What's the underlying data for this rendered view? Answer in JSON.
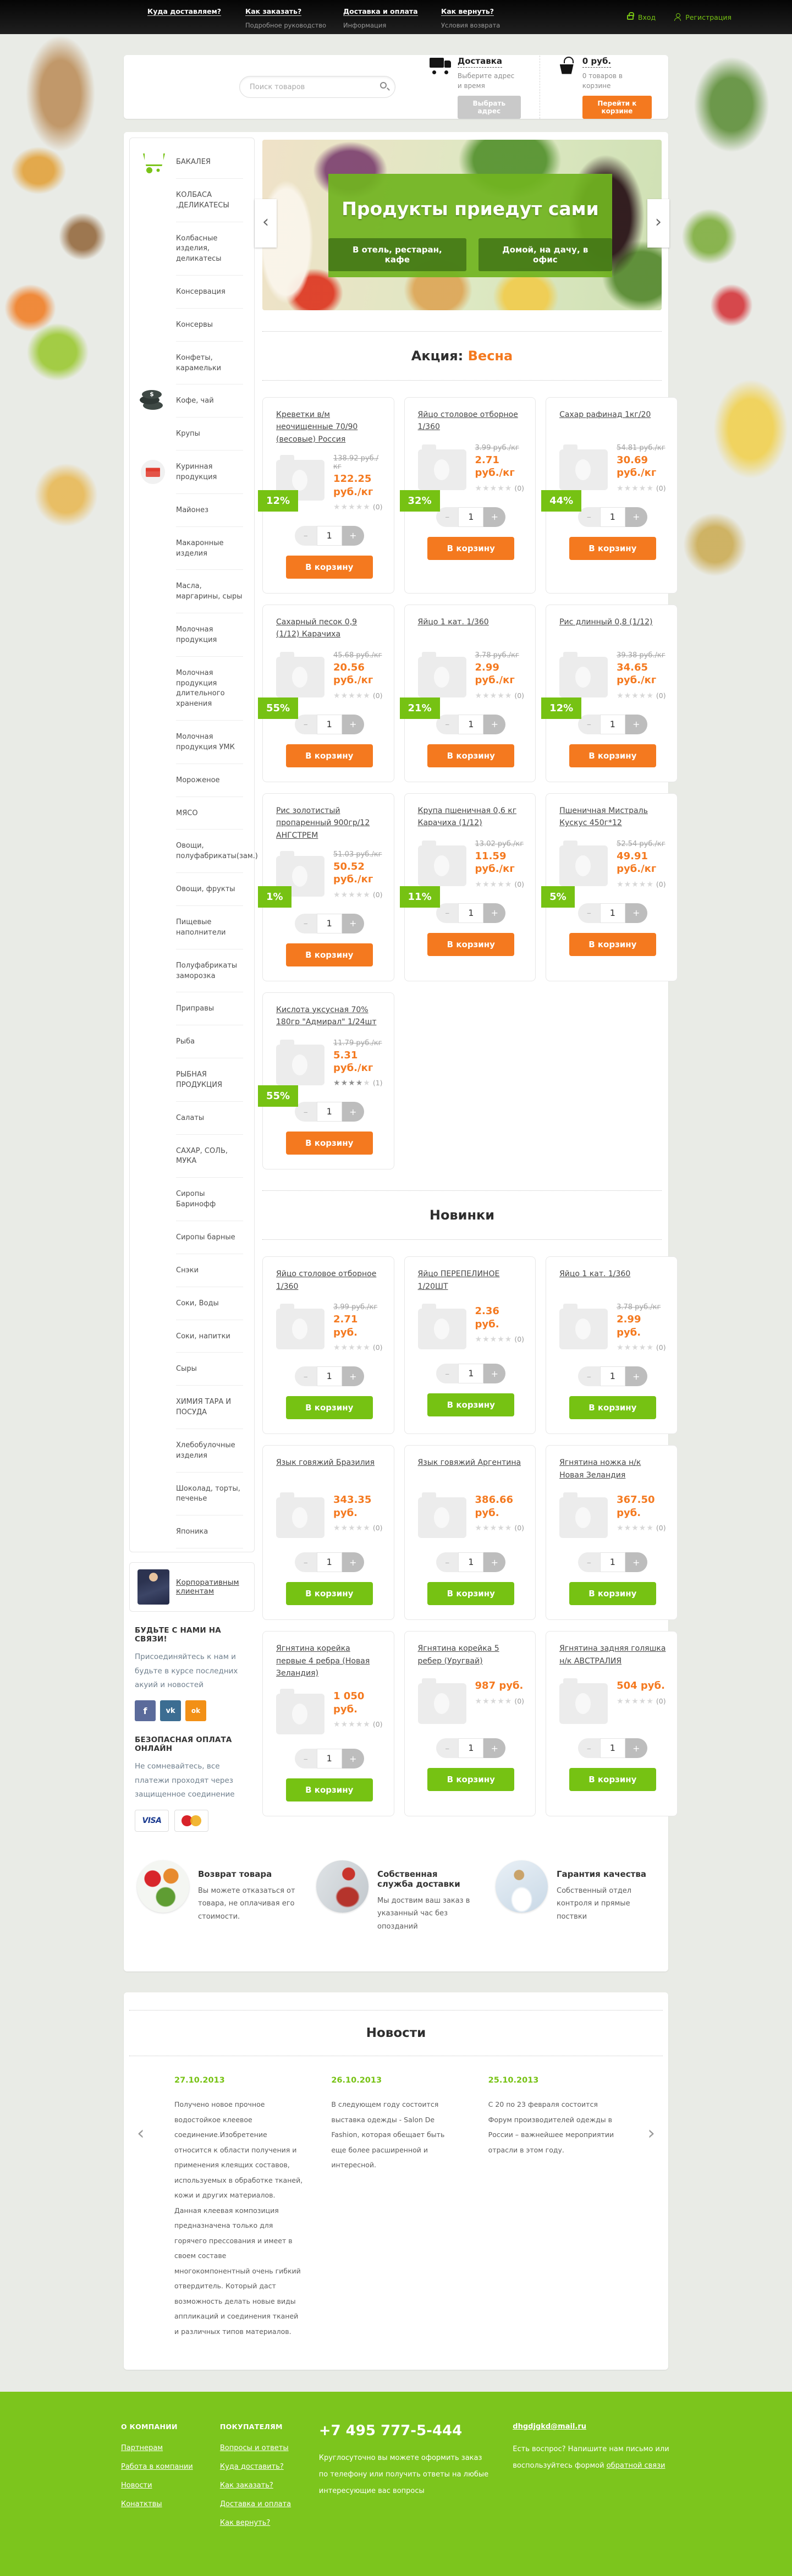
{
  "topbar": {
    "links": [
      {
        "title": "Куда доставляем?",
        "subtitle": ""
      },
      {
        "title": "Как заказать?",
        "subtitle": "Подробное руководство"
      },
      {
        "title": "Доставка и оплата",
        "subtitle": "Информация"
      },
      {
        "title": "Как вернуть?",
        "subtitle": "Условия возврата"
      }
    ],
    "login": "Вход",
    "register": "Регистрация"
  },
  "header": {
    "search_placeholder": "Поиск товаров",
    "delivery": {
      "title": "Доставка",
      "subtitle": "Выберите адрес и время",
      "button": "Выбрать адрес"
    },
    "cart": {
      "total": "0 руб.",
      "count_text": "0 товаров в корзине",
      "button": "Перейти к корзине"
    }
  },
  "sidebar": {
    "categories": [
      {
        "label": "БАКАЛЕЯ",
        "icon": "cart"
      },
      {
        "label": "КОЛБАСА ,ДЕЛИКАТЕСЫ"
      },
      {
        "label": "Колбасные изделия, деликатесы"
      },
      {
        "label": "Консервация"
      },
      {
        "label": "Консервы"
      },
      {
        "label": "Конфеты, карамельки"
      },
      {
        "label": "Кофе, чай",
        "icon": "coins"
      },
      {
        "label": "Крупы"
      },
      {
        "label": "Куринная продукция",
        "icon": "envelope"
      },
      {
        "label": "Майонез"
      },
      {
        "label": "Макаронные изделия"
      },
      {
        "label": "Масла, маргарины, сыры"
      },
      {
        "label": "Молочная продукция"
      },
      {
        "label": "Молочная продукция длительного хранения"
      },
      {
        "label": "Молочная продукция УМК"
      },
      {
        "label": "Мороженое"
      },
      {
        "label": "МЯСО"
      },
      {
        "label": "Овощи, полуфабрикаты(зам.)"
      },
      {
        "label": "Овощи, фрукты"
      },
      {
        "label": "Пищевые наполнители"
      },
      {
        "label": "Полуфабрикаты заморозка"
      },
      {
        "label": "Приправы"
      },
      {
        "label": "Рыба"
      },
      {
        "label": "РЫБНАЯ ПРОДУКЦИЯ"
      },
      {
        "label": "Салаты"
      },
      {
        "label": "САХАР, СОЛЬ, МУКА"
      },
      {
        "label": "Сиропы Баринофф"
      },
      {
        "label": "Сиропы барные"
      },
      {
        "label": "Снэки"
      },
      {
        "label": "Соки, Воды"
      },
      {
        "label": "Соки, напитки"
      },
      {
        "label": "Сыры"
      },
      {
        "label": "ХИМИЯ ТАРА И ПОСУДА"
      },
      {
        "label": "Хлебобулочные изделия"
      },
      {
        "label": "Шоколад, торты, печенье"
      },
      {
        "label": "Японика"
      }
    ],
    "corporate": {
      "label": "Корпоративным клиентам"
    },
    "social": {
      "title": "БУДЬТЕ С НАМИ НА СВЯЗИ!",
      "text": "Присоединяйтесь к нам и будьте в курсе последних акуий и новостей",
      "networks": [
        {
          "name": "Facebook",
          "icon": "facebook"
        },
        {
          "name": "ВКонтакте",
          "icon": "vk"
        },
        {
          "name": "Одноклассники",
          "icon": "ok"
        }
      ]
    },
    "payment": {
      "title": "БЕЗОПАСНАЯ ОПЛАТА ОНЛАЙН",
      "text": "Не сомневайтесь, все платежи проходят через защищенное соединение",
      "methods": [
        {
          "name": "VISA",
          "icon": "visa"
        },
        {
          "name": "MasterCard",
          "icon": "mastercard"
        }
      ]
    }
  },
  "banner": {
    "title": "Продукты приедут сами",
    "buttons": [
      {
        "label": "В отель, рестаран, кафе"
      },
      {
        "label": "Домой, на дачу, в офис"
      }
    ]
  },
  "promo": {
    "title_prefix": "Акция:",
    "title_accent": "Весна",
    "products": [
      {
        "name": "Креветки в/м неочищенные 70/90 (весовые) Россия",
        "old_price": "138.92 руб./кг",
        "price": "122.25 руб./кг",
        "discount": "12%",
        "rating": 0,
        "reviews": "(0)"
      },
      {
        "name": "Яйцо столовое отборное 1/360",
        "old_price": "3.99 руб./кг",
        "price": "2.71 руб./кг",
        "discount": "32%",
        "rating": 0,
        "reviews": "(0)"
      },
      {
        "name": "Сахар рафинад 1кг/20",
        "old_price": "54.81 руб./кг",
        "price": "30.69 руб./кг",
        "discount": "44%",
        "rating": 0,
        "reviews": "(0)"
      },
      {
        "name": "Сахарный песок 0,9 (1/12) Карачиха",
        "old_price": "45.68 руб./кг",
        "price": "20.56 руб./кг",
        "discount": "55%",
        "rating": 0,
        "reviews": "(0)"
      },
      {
        "name": "Яйцо 1 кат. 1/360",
        "old_price": "3.78 руб./кг",
        "price": "2.99 руб./кг",
        "discount": "21%",
        "rating": 0,
        "reviews": "(0)"
      },
      {
        "name": "Рис длинный 0,8 (1/12)",
        "old_price": "39.38 руб./кг",
        "price": "34.65 руб./кг",
        "discount": "12%",
        "rating": 0,
        "reviews": "(0)"
      },
      {
        "name": "Рис золотистый пропаренный 900гр/12 АНГСТРЕМ",
        "old_price": "51.03 руб./кг",
        "price": "50.52 руб./кг",
        "discount": "1%",
        "rating": 0,
        "reviews": "(0)"
      },
      {
        "name": "Крупа пшеничная 0,6 кг Карачиха (1/12)",
        "old_price": "13.02 руб./кг",
        "price": "11.59 руб./кг",
        "discount": "11%",
        "rating": 0,
        "reviews": "(0)"
      },
      {
        "name": "Пшеничная Мистраль Кускус 450г*12",
        "old_price": "52.54 руб./кг",
        "price": "49.91 руб./кг",
        "discount": "5%",
        "rating": 0,
        "reviews": "(0)"
      },
      {
        "name": "Кислота уксусная 70% 180гр \"Адмирал\" 1/24шт",
        "old_price": "11.79 руб./кг",
        "price": "5.31 руб./кг",
        "discount": "55%",
        "rating": 4,
        "reviews": "(1)"
      }
    ]
  },
  "novelties": {
    "title": "Новинки",
    "products": [
      {
        "name": "Яйцо столовое отборное 1/360",
        "old_price": "3.99 руб./кг",
        "price": "2.71 руб.",
        "rating": 0,
        "reviews": "(0)"
      },
      {
        "name": "Яйцо ПЕРЕПЕЛИНОЕ 1/20ШТ",
        "price": "2.36 руб.",
        "rating": 0,
        "reviews": "(0)"
      },
      {
        "name": "Яйцо 1 кат. 1/360",
        "old_price": "3.78 руб./кг",
        "price": "2.99 руб.",
        "rating": 0,
        "reviews": "(0)"
      },
      {
        "name": "Язык говяжий Бразилия",
        "price": "343.35 руб.",
        "rating": 0,
        "reviews": "(0)"
      },
      {
        "name": "Язык говяжий Аргентина",
        "price": "386.66 руб.",
        "rating": 0,
        "reviews": "(0)"
      },
      {
        "name": "Ягнятина ножка н/к Новая Зеландия",
        "price": "367.50 руб.",
        "rating": 0,
        "reviews": "(0)"
      },
      {
        "name": "Ягнятина корейка первые 4 ребра (Новая Зеландия)",
        "price": "1 050 руб.",
        "rating": 0,
        "reviews": "(0)"
      },
      {
        "name": "Ягнятина корейка 5 ребер (Уругвай)",
        "price": "987 руб.",
        "rating": 0,
        "reviews": "(0)"
      },
      {
        "name": "Ягнятина задняя голяшка н/к АВСТРАЛИЯ",
        "price": "504 руб.",
        "rating": 0,
        "reviews": "(0)"
      }
    ]
  },
  "product_ui": {
    "add_to_cart": "В корзину",
    "qty": "1",
    "minus": "–",
    "plus": "+"
  },
  "features": [
    {
      "title": "Возврат товара",
      "text": "Вы можете отказаться от товара, не оплачивая его стоимости.",
      "icon": "veggies"
    },
    {
      "title": "Собственная служба доставки",
      "text": "Мы доствим ваш заказ в указанный час без опозданий",
      "icon": "courier"
    },
    {
      "title": "Гарантия качества",
      "text": "Собственный отдел контроля и прямые поствки",
      "icon": "quality"
    }
  ],
  "news": {
    "title": "Новости",
    "items": [
      {
        "date": "27.10.2013",
        "text": "Получено новое прочное водостойкое клеевое соединение.Изобретение относится к области получения и применения клеящих составов, используемых в обработке тканей, кожи и других материалов. Данная клеевая композиция предназначена только для горячего прессования и имеет в своем составе многокомпонентный очень гибкий отвердитель. Который даст возможность делать новые виды аппликаций и соединения тканей и различных типов материалов."
      },
      {
        "date": "26.10.2013",
        "text": "В следующем году состоится выставка одежды - Salon De Fashion, которая обещает быть еще более расширенной и интересной."
      },
      {
        "date": "25.10.2013",
        "text": "С 20 по 23 февраля состоится Форум производителей одежды в России – важнейшее мероприятии отрасли в этом году."
      }
    ]
  },
  "footer": {
    "about": {
      "title": "О КОМПАНИИ",
      "links": [
        {
          "label": "Партнерам"
        },
        {
          "label": "Работа в компании"
        },
        {
          "label": "Новости"
        },
        {
          "label": "Конатктвы"
        }
      ]
    },
    "customers": {
      "title": "ПОКУПАТЕЛЯМ",
      "links": [
        {
          "label": "Вопросы и ответы"
        },
        {
          "label": "Куда доставить?"
        },
        {
          "label": "Как заказать?"
        },
        {
          "label": "Доставка и оплата"
        },
        {
          "label": "Как вернуть?"
        }
      ]
    },
    "phone": {
      "number": "+7 495 777-5-444",
      "text": "Круглосуточно вы можете оформить заказ по телефону или получить ответы на любые интересующие вас вопросы"
    },
    "email": {
      "address": "dhgdjgkd@mail.ru",
      "text_before": "Есть воспрос? Напишите нам письмо или воспользуйтесь формой",
      "link": "обратной связи"
    }
  }
}
